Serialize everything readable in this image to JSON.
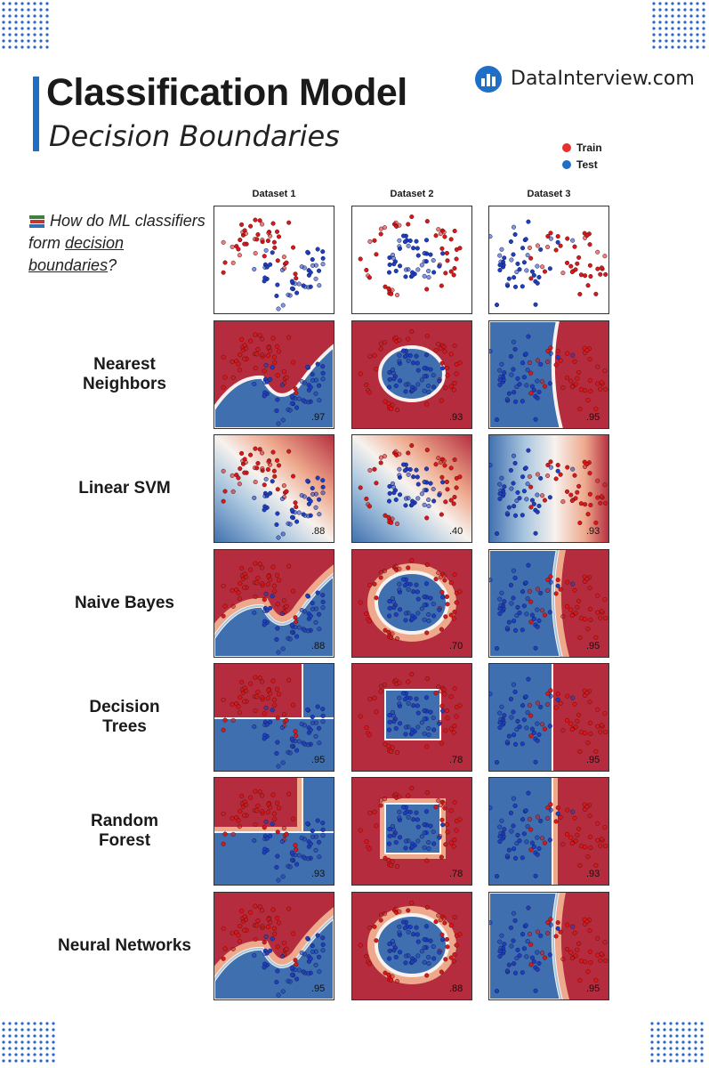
{
  "header": {
    "title": "Classification Model",
    "subtitle": "Decision Boundaries",
    "brand": "DataInterview.com"
  },
  "legend": [
    "Train",
    "Test"
  ],
  "question": {
    "prefix": "How do ML classifiers form",
    "link": "decision boundaries",
    "suffix": "?"
  },
  "columns": [
    "Dataset 1",
    "Dataset 2",
    "Dataset 3"
  ],
  "rows": [
    {
      "label": "Nearest Neighbors",
      "scores": [
        ".97",
        ".93",
        ".95"
      ]
    },
    {
      "label": "Linear SVM",
      "scores": [
        ".88",
        ".40",
        ".93"
      ]
    },
    {
      "label": "Naive Bayes",
      "scores": [
        ".88",
        ".70",
        ".95"
      ]
    },
    {
      "label": "Decision Trees",
      "scores": [
        ".95",
        ".78",
        ".95"
      ]
    },
    {
      "label": "Random Forest",
      "scores": [
        ".93",
        ".78",
        ".93"
      ]
    },
    {
      "label": "Neural Networks",
      "scores": [
        ".95",
        ".88",
        ".95"
      ]
    }
  ]
}
